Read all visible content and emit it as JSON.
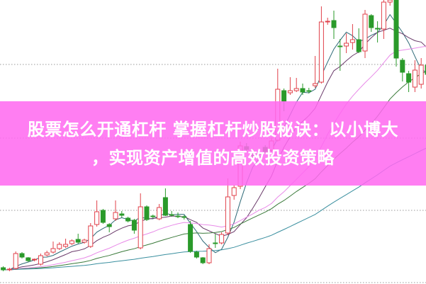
{
  "headline": {
    "line1": "股票怎么开通杠杆 掌握杠杆炒股秘诀：以小博大",
    "line2": "，实现资产增值的高效投资策略",
    "background": "#ff69f0",
    "text_color": "#ffffff"
  },
  "chart_data": {
    "type": "candlestick",
    "title": "",
    "grid": "horizontal dotted",
    "ylim": [
      0,
      400
    ],
    "up_color": "#e0404a",
    "down_color": "#2a9a2a",
    "ma_colors": [
      "#2f6a78",
      "#6a3a6a",
      "#e88ae8",
      "#3a7a3a",
      "#3a8f9f"
    ],
    "candles": [
      [
        22,
        19,
        24,
        17
      ],
      [
        19,
        20,
        22,
        17
      ],
      [
        21,
        42,
        45,
        19
      ],
      [
        42,
        37,
        44,
        35
      ],
      [
        36,
        32,
        37,
        30
      ],
      [
        33,
        34,
        35,
        31
      ],
      [
        27,
        39,
        42,
        25
      ],
      [
        40,
        43,
        46,
        38
      ],
      [
        44,
        49,
        59,
        42
      ],
      [
        49,
        55,
        58,
        47
      ],
      [
        52,
        55,
        63,
        50
      ],
      [
        56,
        60,
        62,
        54
      ],
      [
        62,
        58,
        70,
        56
      ],
      [
        58,
        61,
        63,
        56
      ],
      [
        52,
        81,
        85,
        50
      ],
      [
        83,
        101,
        117,
        80
      ],
      [
        103,
        86,
        105,
        84
      ],
      [
        83,
        80,
        85,
        72
      ],
      [
        91,
        100,
        117,
        88
      ],
      [
        98,
        96,
        102,
        93
      ],
      [
        92,
        88,
        94,
        86
      ],
      [
        89,
        75,
        91,
        70
      ],
      [
        50,
        108,
        127,
        48
      ],
      [
        108,
        90,
        110,
        88
      ],
      [
        95,
        94,
        97,
        92
      ],
      [
        91,
        107,
        112,
        89
      ],
      [
        121,
        96,
        134,
        95
      ],
      [
        97,
        96,
        102,
        94
      ],
      [
        95,
        94,
        100,
        92
      ],
      [
        94,
        93,
        96,
        90
      ],
      [
        83,
        45,
        88,
        43
      ],
      [
        44,
        37,
        46,
        35
      ],
      [
        36,
        29,
        37,
        27
      ],
      [
        29,
        49,
        55,
        27
      ],
      [
        57,
        56,
        70,
        50
      ],
      [
        57,
        69,
        72,
        55
      ],
      [
        71,
        122,
        148,
        68
      ],
      [
        124,
        135,
        139,
        118
      ],
      [
        137,
        194,
        200,
        133
      ],
      [
        193,
        189,
        198,
        185
      ],
      [
        181,
        180,
        190,
        176
      ],
      [
        183,
        182,
        190,
        178
      ],
      [
        192,
        186,
        195,
        183
      ],
      [
        188,
        201,
        206,
        185
      ],
      [
        202,
        274,
        303,
        200
      ],
      [
        272,
        257,
        275,
        243
      ],
      [
        269,
        272,
        291,
        266
      ],
      [
        272,
        275,
        290,
        270
      ],
      [
        275,
        270,
        282,
        266
      ],
      [
        272,
        271,
        276,
        268
      ],
      [
        279,
        282,
        321,
        276
      ],
      [
        284,
        369,
        391,
        282
      ],
      [
        369,
        370,
        375,
        365
      ],
      [
        371,
        361,
        385,
        345
      ],
      [
        335,
        334,
        345,
        300
      ],
      [
        335,
        339,
        353,
        325
      ],
      [
        340,
        344,
        366,
        330
      ],
      [
        344,
        327,
        360,
        325
      ],
      [
        328,
        380,
        386,
        318
      ],
      [
        378,
        361,
        380,
        355
      ],
      [
        360,
        359,
        370,
        340
      ],
      [
        359,
        397,
        400,
        345
      ],
      [
        397,
        400,
        401,
        392
      ],
      [
        400,
        318,
        401,
        306
      ],
      [
        315,
        298,
        318,
        285
      ],
      [
        296,
        284,
        300,
        270
      ],
      [
        277,
        301,
        315,
        270
      ],
      [
        281,
        308,
        318,
        275
      ],
      [
        308,
        295,
        315,
        290
      ]
    ]
  }
}
